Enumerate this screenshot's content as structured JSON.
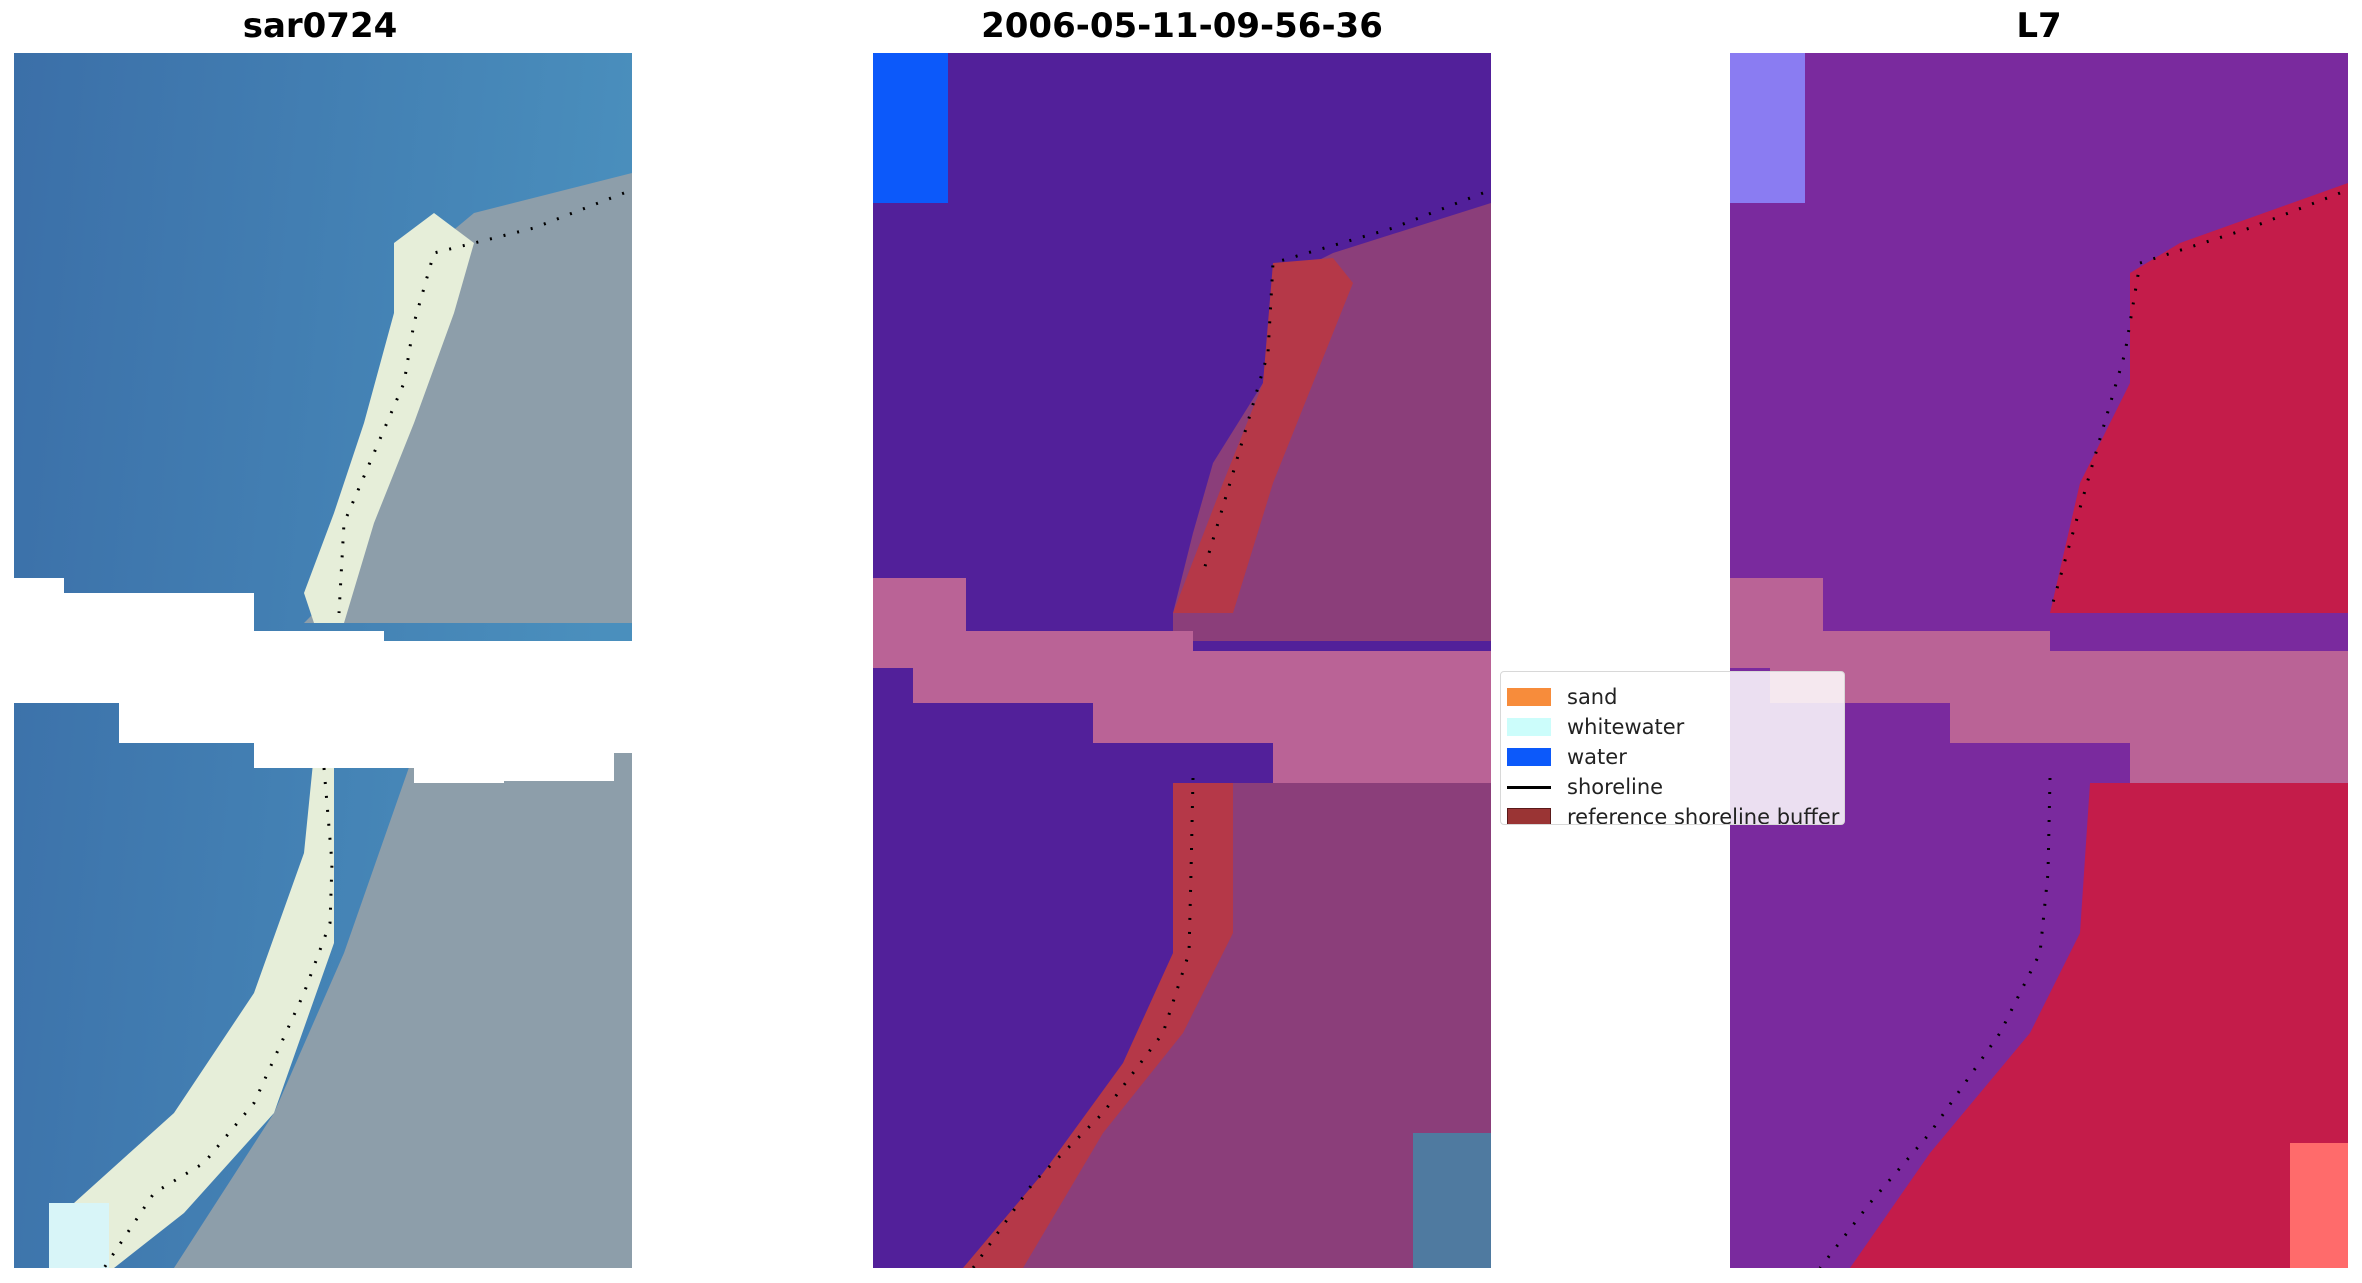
{
  "panels": [
    {
      "title": "sar0724"
    },
    {
      "title": "2006-05-11-09-56-36"
    },
    {
      "title": "L7"
    }
  ],
  "legend": {
    "items": [
      {
        "label": "sand",
        "color": "#f78c3b",
        "kind": "patch"
      },
      {
        "label": "whitewater",
        "color": "#ccfdfb",
        "kind": "patch"
      },
      {
        "label": "water",
        "color": "#0c59fa",
        "kind": "patch"
      },
      {
        "label": "shoreline",
        "color": "#000000",
        "kind": "line"
      },
      {
        "label": "reference shoreline buffer",
        "color": "#9a3434",
        "kind": "patch"
      }
    ]
  },
  "colors": {
    "sea_rgb": "#3f7fb3",
    "beach_rgb": "#e6eed9",
    "land_rgb": "#8d9eaa",
    "classified_water": "#52209a",
    "classified_land": "#8b3e7a",
    "ndwi_water": "#7a2a9e",
    "ndwi_land": "#c41c4a",
    "nodata_band": "#ba6396"
  }
}
